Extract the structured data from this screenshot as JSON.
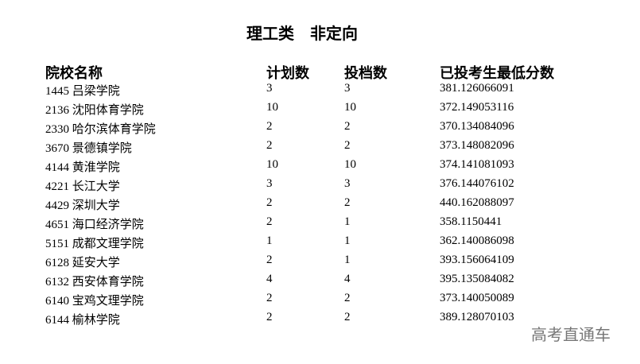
{
  "title": "理工类    非定向",
  "headers": [
    "院校名称",
    "计划数",
    "投档数",
    "已投考生最低分数"
  ],
  "rows": [
    [
      "1445 吕梁学院",
      "3",
      "3",
      "381.126066091"
    ],
    [
      "2136 沈阳体育学院",
      "10",
      "10",
      "372.149053116"
    ],
    [
      "2330 哈尔滨体育学院",
      "2",
      "2",
      "370.134084096"
    ],
    [
      "3670 景德镇学院",
      "2",
      "2",
      "373.148082096"
    ],
    [
      "4144 黄淮学院",
      "10",
      "10",
      "374.141081093"
    ],
    [
      "4221 长江大学",
      "3",
      "3",
      "376.144076102"
    ],
    [
      "4429 深圳大学",
      "2",
      "2",
      "440.162088097"
    ],
    [
      "4651 海口经济学院",
      "2",
      "1",
      "358.1150441"
    ],
    [
      "5151 成都文理学院",
      "1",
      "1",
      "362.140086098"
    ],
    [
      "6128 延安大学",
      "2",
      "1",
      "393.156064109"
    ],
    [
      "6132 西安体育学院",
      "4",
      "4",
      "395.135084082"
    ],
    [
      "6140 宝鸡文理学院",
      "2",
      "2",
      "373.140050089"
    ],
    [
      "6144 榆林学院",
      "2",
      "2",
      "389.128070103"
    ]
  ],
  "watermark": "高考直通车"
}
